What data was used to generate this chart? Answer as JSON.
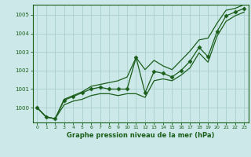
{
  "xlabel": "Graphe pression niveau de la mer (hPa)",
  "background_color": "#cce8e8",
  "grid_color": "#aad0d0",
  "line_color": "#1a5e1a",
  "x_hours": [
    0,
    1,
    2,
    3,
    4,
    5,
    6,
    7,
    8,
    9,
    10,
    11,
    12,
    13,
    14,
    15,
    16,
    17,
    18,
    19,
    20,
    21,
    22,
    23
  ],
  "y_main": [
    1000.0,
    999.5,
    999.4,
    1000.4,
    1000.6,
    1000.8,
    1001.0,
    1001.1,
    1001.0,
    1001.0,
    1001.0,
    1002.7,
    1000.8,
    1001.95,
    1001.85,
    1001.65,
    1002.0,
    1002.5,
    1003.25,
    1002.75,
    1004.1,
    1004.95,
    1005.15,
    1005.35
  ],
  "y_high": [
    1000.0,
    999.5,
    999.4,
    1000.45,
    1000.65,
    1000.85,
    1001.15,
    1001.25,
    1001.35,
    1001.45,
    1001.65,
    1002.7,
    1002.05,
    1002.55,
    1002.25,
    1002.05,
    1002.55,
    1003.05,
    1003.65,
    1003.75,
    1004.55,
    1005.25,
    1005.35,
    1005.55
  ],
  "y_low": [
    1000.0,
    999.5,
    999.4,
    1000.15,
    1000.35,
    1000.45,
    1000.65,
    1000.75,
    1000.75,
    1000.65,
    1000.75,
    1000.75,
    1000.55,
    1001.45,
    1001.55,
    1001.45,
    1001.75,
    1002.15,
    1002.95,
    1002.45,
    1003.85,
    1004.65,
    1004.95,
    1005.15
  ],
  "ylim": [
    999.2,
    1005.55
  ],
  "yticks": [
    1000,
    1001,
    1002,
    1003,
    1004,
    1005
  ],
  "xticks": [
    0,
    1,
    2,
    3,
    4,
    5,
    6,
    7,
    8,
    9,
    10,
    11,
    12,
    13,
    14,
    15,
    16,
    17,
    18,
    19,
    20,
    21,
    22,
    23
  ],
  "marker": "D",
  "markersize": 2.5,
  "linewidth": 0.9
}
